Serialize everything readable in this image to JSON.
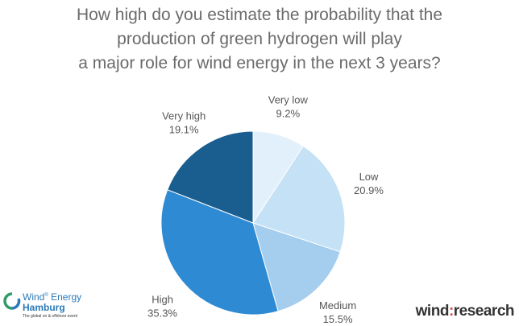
{
  "chart_data": {
    "type": "pie",
    "title_lines": [
      "How high do you estimate the probability that the",
      "production of green hydrogen will play",
      "a major role for wind energy in the next 3 years?"
    ],
    "slices": [
      {
        "label": "Very low",
        "value": 9.2,
        "value_label": "9.2%",
        "color": "#e2f0fb"
      },
      {
        "label": "Low",
        "value": 20.9,
        "value_label": "20.9%",
        "color": "#c5e1f5"
      },
      {
        "label": "Medium",
        "value": 15.5,
        "value_label": "15.5%",
        "color": "#a4cdee"
      },
      {
        "label": "High",
        "value": 35.3,
        "value_label": "35.3%",
        "color": "#2e8bd3"
      },
      {
        "label": "Very high",
        "value": 19.1,
        "value_label": "19.1%",
        "color": "#1a5d8f"
      }
    ],
    "start_angle_deg": 0,
    "direction": "clockwise",
    "legend": "none"
  },
  "logos": {
    "left": {
      "line1": "Wind",
      "line1_mark": "®",
      "line1b": "Energy",
      "line2": "Hamburg",
      "line3": "The global on & offshore event"
    },
    "right": {
      "part1": "wind",
      "colon": ":",
      "part2": "research"
    }
  }
}
